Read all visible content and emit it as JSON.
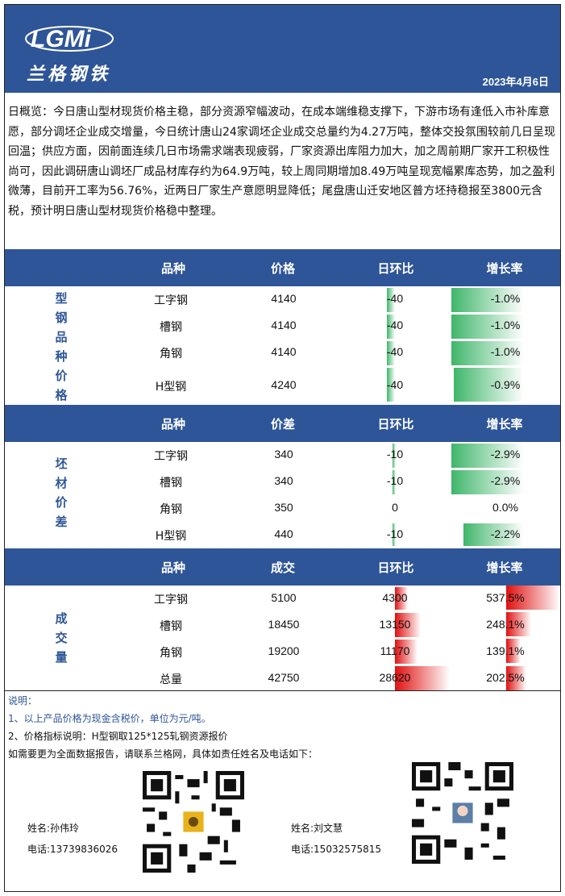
{
  "header": {
    "logo_text": "LGMi",
    "brand_cn": "兰格钢铁",
    "date": "2023年4月6日"
  },
  "summary": "日概览：今日唐山型材现货价格主稳，部分资源窄幅波动，在成本端维稳支撑下，下游市场有逢低入市补库意愿，部分调坯企业成交增量，今日统计唐山24家调坯企业成交总量约为4.27万吨，整体交投氛围较前几日呈现回温；供应方面，因前面连续几日市场需求端表现疲弱，厂家资源出库阻力加大，加之周前期厂家开工积极性尚可，因此调研唐山调坯厂成品材库存约为64.9万吨，较上周同期增加8.49万吨呈现宽幅累库态势，加之盈利微薄，目前开工率为56.76%，近两日厂家生产意愿明显降低；尾盘唐山迁安地区普方坯持稳报至3800元含税，预计明日唐山型材现货价格稳中整理。",
  "section1": {
    "side": [
      "型",
      "钢",
      "品",
      "种",
      "价",
      "格"
    ],
    "headers": [
      "品种",
      "价格",
      "日环比",
      "增长率"
    ],
    "rows": [
      [
        "工字钢",
        "4140",
        "-40",
        "-1.0%"
      ],
      [
        "槽钢",
        "4140",
        "-40",
        "-1.0%"
      ],
      [
        "角钢",
        "4140",
        "-40",
        "-1.0%"
      ],
      [
        "H型钢",
        "4240",
        "-40",
        "-0.9%"
      ]
    ]
  },
  "section2": {
    "side": [
      "坯",
      "材",
      "价",
      "差"
    ],
    "headers": [
      "品种",
      "价差",
      "日环比",
      "增长率"
    ],
    "rows": [
      [
        "工字钢",
        "340",
        "-10",
        "-2.9%"
      ],
      [
        "槽钢",
        "340",
        "-10",
        "-2.9%"
      ],
      [
        "角钢",
        "350",
        "0",
        "0.0%"
      ],
      [
        "H型钢",
        "440",
        "-10",
        "-2.2%"
      ]
    ]
  },
  "section3": {
    "side": [
      "成",
      "交",
      "量"
    ],
    "headers": [
      "品种",
      "成交",
      "日环比",
      "增长率"
    ],
    "rows": [
      [
        "工字钢",
        "5100",
        "4300",
        "537.5%"
      ],
      [
        "槽钢",
        "18450",
        "13150",
        "248.1%"
      ],
      [
        "角钢",
        "19200",
        "11170",
        "139.1%"
      ],
      [
        "总量",
        "42750",
        "28620",
        "202.5%"
      ]
    ]
  },
  "notes": {
    "title": "说明：",
    "line1": "1、以上产品价格为现金含税价，单位为元/吨。",
    "line2": "2、价格指标说明：H型钢取125*125轧钢资源报价",
    "line3": "如需要更为全面数据报告，请联系兰格网，具体如责任姓名及电话如下："
  },
  "contacts": [
    {
      "name": "姓名:孙伟玲",
      "phone": "电话:13739836026"
    },
    {
      "name": "姓名:刘文慧",
      "phone": "电话:15032575815"
    }
  ]
}
